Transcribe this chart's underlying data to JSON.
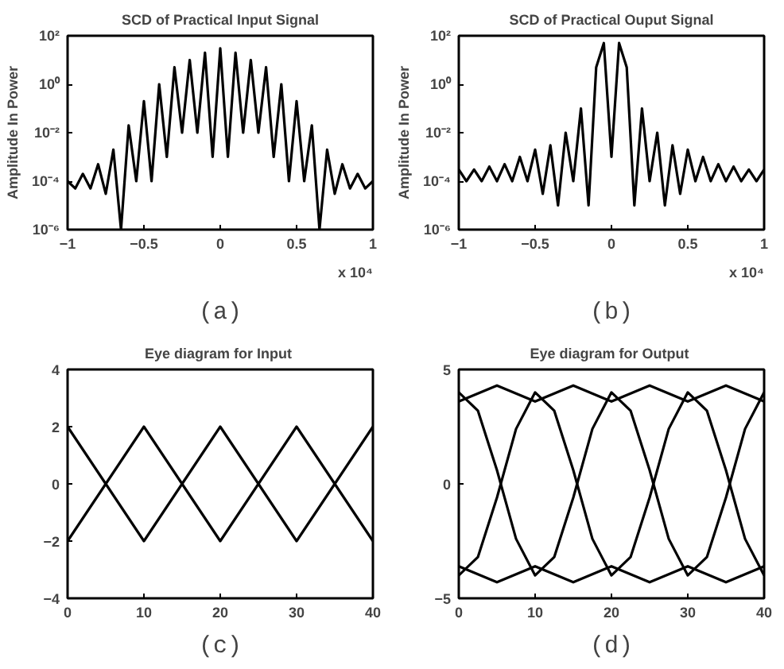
{
  "chart_data": [
    {
      "type": "line",
      "title": "SCD of Practical Input Signal",
      "ylabel": "Amplitude In Power",
      "log": "y",
      "grid": false,
      "xlim": [
        -1,
        1
      ],
      "xticks": [
        -1,
        -0.5,
        0,
        0.5,
        1
      ],
      "ylim": [
        1e-06,
        100
      ],
      "yticks": [
        {
          "value": 1e-06,
          "label": "10⁻⁶"
        },
        {
          "value": 0.0001,
          "label": "10⁻⁴"
        },
        {
          "value": 0.01,
          "label": "10⁻²"
        },
        {
          "value": 1,
          "label": "10⁰"
        },
        {
          "value": 100,
          "label": "10²"
        }
      ],
      "annotations": [
        "x 10⁴",
        "(a)"
      ],
      "x": [
        -1,
        -0.95,
        -0.9,
        -0.85,
        -0.8,
        -0.75,
        -0.7,
        -0.65,
        -0.6,
        -0.55,
        -0.5,
        -0.45,
        -0.4,
        -0.35,
        -0.3,
        -0.25,
        -0.2,
        -0.15,
        -0.1,
        -0.05,
        0,
        0.05,
        0.1,
        0.15,
        0.2,
        0.25,
        0.3,
        0.35,
        0.4,
        0.45,
        0.5,
        0.55,
        0.6,
        0.65,
        0.7,
        0.75,
        0.8,
        0.85,
        0.9,
        0.95,
        1
      ],
      "series": [
        {
          "color": "#000000",
          "values": [
            0.0001,
            5e-05,
            0.0002,
            5e-05,
            0.0005,
            3e-05,
            0.002,
            1e-06,
            0.02,
            0.0001,
            0.2,
            0.0001,
            1,
            0.001,
            5,
            0.01,
            10,
            0.01,
            20,
            0.001,
            30,
            0.001,
            20,
            0.01,
            10,
            0.01,
            5,
            0.001,
            1,
            0.0001,
            0.2,
            0.0001,
            0.02,
            1e-06,
            0.002,
            3e-05,
            0.0005,
            5e-05,
            0.0002,
            5e-05,
            0.0001
          ]
        }
      ]
    },
    {
      "type": "line",
      "title": "SCD of Practical Ouput Signal",
      "ylabel": "Amplitude In Power",
      "log": "y",
      "grid": false,
      "xlim": [
        -1,
        1
      ],
      "xticks": [
        -1,
        -0.5,
        0,
        0.5,
        1
      ],
      "ylim": [
        1e-06,
        100
      ],
      "yticks": [
        {
          "value": 1e-06,
          "label": "10⁻⁶"
        },
        {
          "value": 0.0001,
          "label": "10⁻⁴"
        },
        {
          "value": 0.01,
          "label": "10⁻²"
        },
        {
          "value": 1,
          "label": "10⁰"
        },
        {
          "value": 100,
          "label": "10²"
        }
      ],
      "annotations": [
        "x 10⁴",
        "(b)"
      ],
      "x": [
        -1,
        -0.95,
        -0.9,
        -0.85,
        -0.8,
        -0.75,
        -0.7,
        -0.65,
        -0.6,
        -0.55,
        -0.5,
        -0.45,
        -0.4,
        -0.35,
        -0.3,
        -0.25,
        -0.2,
        -0.15,
        -0.1,
        -0.05,
        0,
        0.05,
        0.1,
        0.15,
        0.2,
        0.25,
        0.3,
        0.35,
        0.4,
        0.45,
        0.5,
        0.55,
        0.6,
        0.65,
        0.7,
        0.75,
        0.8,
        0.85,
        0.9,
        0.95,
        1
      ],
      "series": [
        {
          "color": "#000000",
          "values": [
            0.0003,
            0.0001,
            0.0003,
            0.0001,
            0.0004,
            0.0001,
            0.0005,
            0.0001,
            0.001,
            0.0001,
            0.002,
            3e-05,
            0.003,
            1e-05,
            0.01,
            0.0001,
            0.1,
            1e-05,
            5,
            50,
            0.001,
            50,
            5,
            1e-05,
            0.1,
            0.0001,
            0.01,
            1e-05,
            0.003,
            3e-05,
            0.002,
            0.0001,
            0.001,
            0.0001,
            0.0005,
            0.0001,
            0.0004,
            0.0001,
            0.0003,
            0.0001,
            0.0003
          ]
        }
      ]
    },
    {
      "type": "line",
      "title": "Eye diagram for  Input",
      "grid": false,
      "xlim": [
        0,
        40
      ],
      "xticks": [
        0,
        10,
        20,
        30,
        40
      ],
      "ylim": [
        -4,
        4
      ],
      "yticks": [
        -4,
        -2,
        0,
        2,
        4
      ],
      "annotations": [
        "(c)"
      ],
      "x": [
        0,
        5,
        10,
        15,
        20,
        25,
        30,
        35,
        40
      ],
      "series": [
        {
          "color": "#000000",
          "values": [
            2,
            0,
            -2,
            0,
            2,
            0,
            -2,
            0,
            2
          ]
        },
        {
          "color": "#000000",
          "values": [
            -2,
            0,
            2,
            0,
            -2,
            0,
            2,
            0,
            -2
          ]
        }
      ]
    },
    {
      "type": "line",
      "title": "Eye diagram for  Output",
      "grid": false,
      "xlim": [
        0,
        40
      ],
      "xticks": [
        0,
        10,
        20,
        30,
        40
      ],
      "ylim": [
        -5,
        5
      ],
      "yticks": [
        -5,
        0,
        5
      ],
      "annotations": [
        "(d)"
      ],
      "x": [
        0,
        2.5,
        5,
        7.5,
        10,
        12.5,
        15,
        17.5,
        20,
        22.5,
        25,
        27.5,
        30,
        32.5,
        35,
        37.5,
        40
      ],
      "series": [
        {
          "color": "#000000",
          "values": [
            4.0,
            3.2,
            0.6,
            -2.4,
            -4.0,
            -3.2,
            -0.6,
            2.4,
            4.0,
            3.2,
            0.6,
            -2.4,
            -4.0,
            -3.2,
            -0.6,
            2.4,
            4.0
          ]
        },
        {
          "color": "#000000",
          "values": [
            -4.0,
            -3.2,
            -0.6,
            2.4,
            4.0,
            3.2,
            0.6,
            -2.4,
            -4.0,
            -3.2,
            -0.6,
            2.4,
            4.0,
            3.2,
            0.6,
            -2.4,
            -4.0
          ]
        },
        {
          "color": "#000000",
          "x": [
            0,
            5,
            10,
            15,
            20,
            25,
            30,
            35,
            40
          ],
          "values": [
            3.6,
            4.3,
            3.6,
            4.3,
            3.6,
            4.3,
            3.6,
            4.3,
            3.6
          ]
        },
        {
          "color": "#000000",
          "x": [
            0,
            5,
            10,
            15,
            20,
            25,
            30,
            35,
            40
          ],
          "values": [
            -3.6,
            -4.3,
            -3.6,
            -4.3,
            -3.6,
            -4.3,
            -3.6,
            -4.3,
            -3.6
          ]
        }
      ]
    }
  ]
}
